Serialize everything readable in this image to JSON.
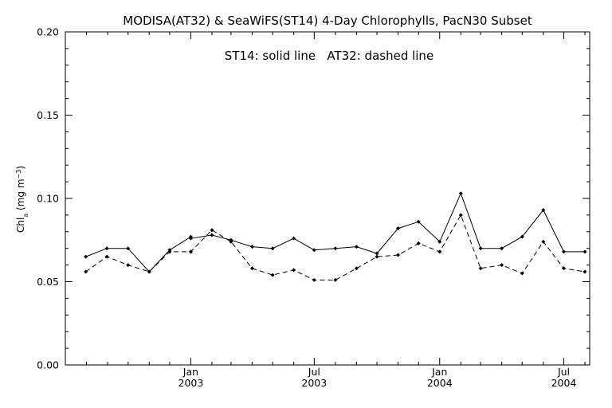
{
  "chart_data": {
    "type": "line",
    "title": "MODISA(AT32) & SeaWiFS(ST14) 4-Day Chlorophylls, PacN30 Subset",
    "annotation": "ST14: solid line   AT32: dashed line",
    "ylabel": "Chl_a (mg m^-3)",
    "ylim": [
      0.0,
      0.2
    ],
    "y_ticks": [
      "0.00",
      "0.05",
      "0.10",
      "0.15",
      "0.20"
    ],
    "x_ticks": [
      {
        "month": "Jan",
        "year": "2003"
      },
      {
        "month": "Jul",
        "year": "2003"
      },
      {
        "month": "Jan",
        "year": "2004"
      },
      {
        "month": "Jul",
        "year": "2004"
      }
    ],
    "series": [
      {
        "name": "ST14",
        "style": "solid",
        "x": [
          "2002-07-31",
          "2002-08-31",
          "2002-10-01",
          "2002-11-01",
          "2002-12-01",
          "2003-01-01",
          "2003-01-01",
          "2003-02-01",
          "2003-03-01",
          "2003-04-01",
          "2003-05-01",
          "2003-06-01",
          "2003-07-01",
          "2003-08-01",
          "2003-09-01",
          "2003-10-01",
          "2003-11-01",
          "2003-12-01",
          "2004-01-01",
          "2004-02-01",
          "2004-03-01",
          "2004-04-01",
          "2004-05-01",
          "2004-06-01",
          "2004-07-01",
          "2004-08-01"
        ],
        "values": [
          0.065,
          0.07,
          0.07,
          0.056,
          0.069,
          0.077,
          0.076,
          0.078,
          0.075,
          0.071,
          0.07,
          0.076,
          0.069,
          0.07,
          0.071,
          0.067,
          0.082,
          0.086,
          0.074,
          0.103,
          0.07,
          0.07,
          0.077,
          0.093,
          0.068,
          0.068
        ]
      },
      {
        "name": "AT32",
        "style": "dashed",
        "x": [
          "2002-07-31",
          "2002-08-31",
          "2002-10-01",
          "2002-11-01",
          "2002-12-01",
          "2003-01-01",
          "2003-01-01",
          "2003-02-01",
          "2003-03-01",
          "2003-04-01",
          "2003-05-01",
          "2003-06-01",
          "2003-07-01",
          "2003-08-01",
          "2003-09-01",
          "2003-10-01",
          "2003-11-01",
          "2003-12-01",
          "2004-01-01",
          "2004-02-01",
          "2004-03-01",
          "2004-04-01",
          "2004-05-01",
          "2004-06-01",
          "2004-07-01",
          "2004-08-01"
        ],
        "values": [
          0.056,
          0.065,
          0.06,
          0.056,
          0.068,
          0.068,
          0.068,
          0.081,
          0.074,
          0.058,
          0.054,
          0.057,
          0.051,
          0.051,
          0.058,
          0.065,
          0.066,
          0.073,
          0.068,
          0.09,
          0.058,
          0.06,
          0.055,
          0.074,
          0.058,
          0.056
        ]
      }
    ]
  },
  "colors": {
    "background": "#ffffff",
    "ink": "#000000"
  }
}
